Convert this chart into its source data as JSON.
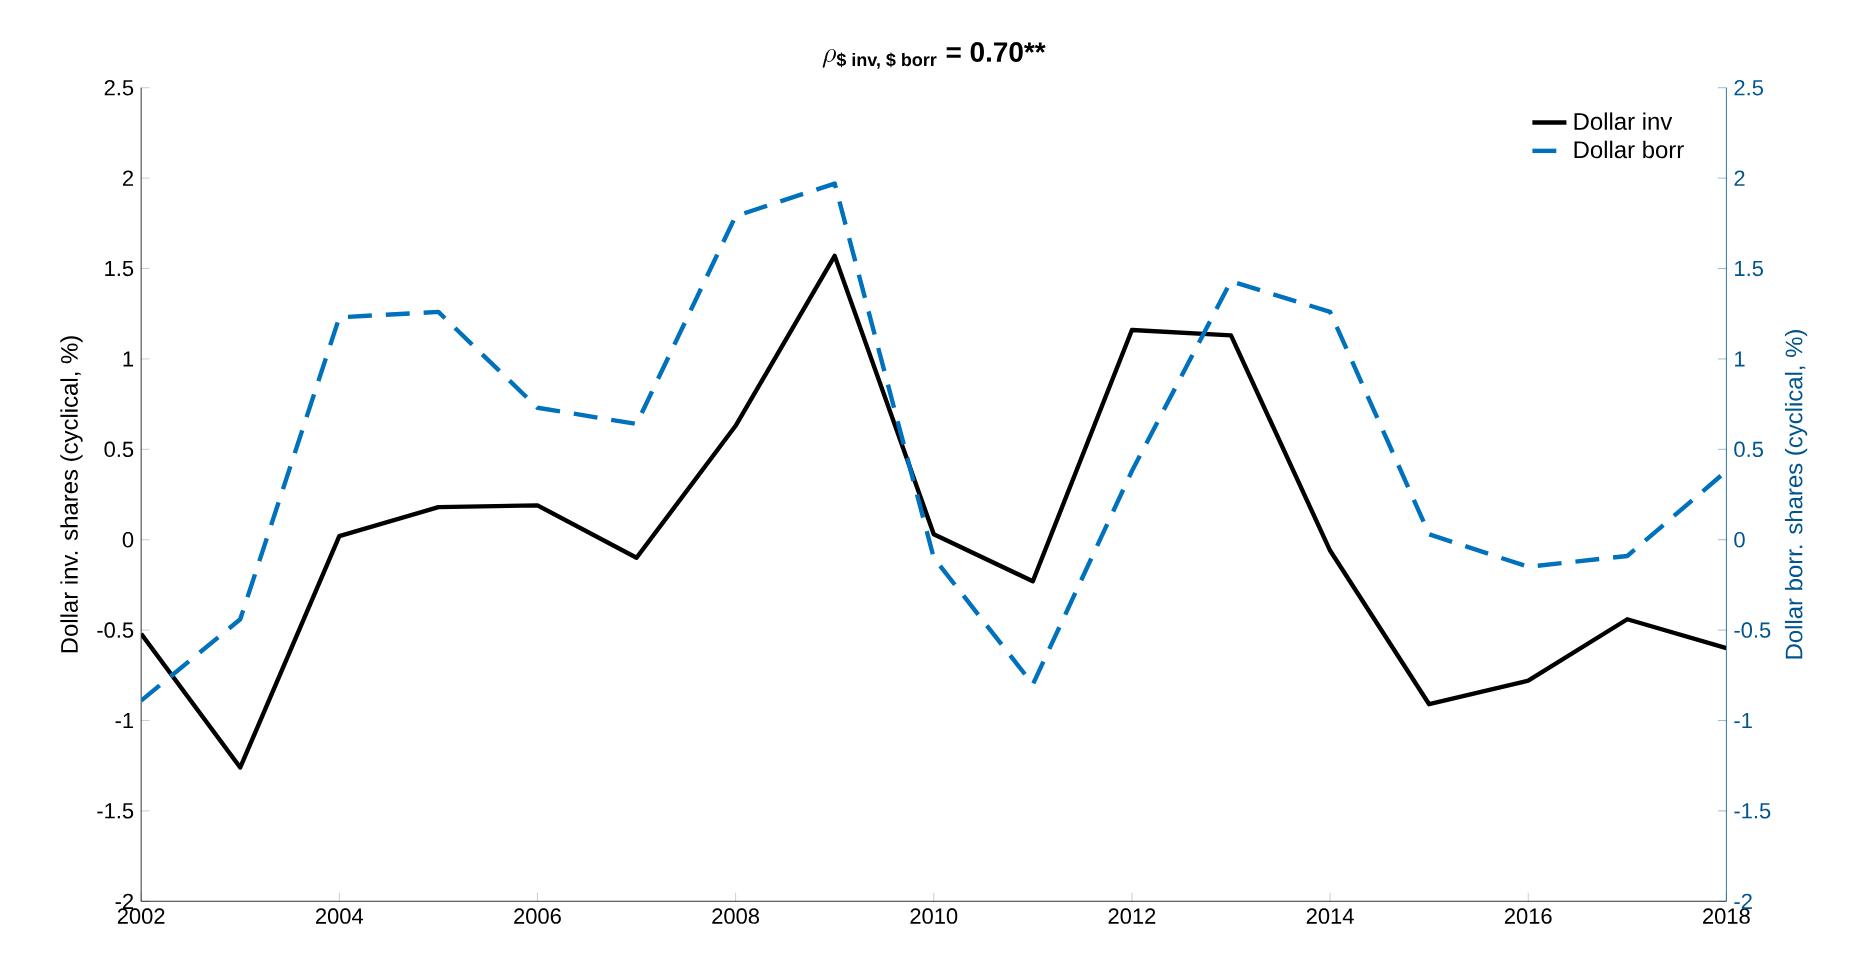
{
  "chart_data": {
    "type": "line",
    "title": "\\rho_{\\mbox{\\bfseries\\small \\$ inv, \\$ borr}}\\ \\mbox{\\bfseries = 0.70**}",
    "ylabel": "Dollar inv. shares (cyclical, %)",
    "y2label": "Dollar borr. shares (cyclical, %)",
    "x": [
      2002,
      2003,
      2004,
      2005,
      2006,
      2007,
      2008,
      2009,
      2010,
      2011,
      2012,
      2013,
      2014,
      2015,
      2016,
      2017,
      2018
    ],
    "series": [
      {
        "name": "Dollar inv",
        "color": "#000000",
        "line_style": "solid",
        "values": [
          -0.52,
          -1.26,
          0.02,
          0.18,
          0.19,
          -0.1,
          0.63,
          1.57,
          0.03,
          -0.23,
          1.16,
          1.13,
          -0.06,
          -0.91,
          -0.78,
          -0.44,
          -0.6
        ]
      },
      {
        "name": "Dollar borr",
        "color": "#0072bd",
        "line_style": "dashed",
        "axis": "y2",
        "values": [
          -0.89,
          -0.44,
          1.23,
          1.26,
          0.73,
          0.64,
          1.79,
          1.97,
          -0.1,
          -0.8,
          0.38,
          1.43,
          1.26,
          0.03,
          -0.15,
          -0.09,
          0.38
        ]
      }
    ],
    "xlim": [
      2002,
      2018
    ],
    "xticks": [
      2002,
      2004,
      2006,
      2008,
      2010,
      2012,
      2014,
      2016,
      2018
    ],
    "ylim": [
      -2,
      2.5
    ],
    "yticks": [
      -2,
      -1.5,
      -1,
      -0.5,
      0,
      0.5,
      1,
      1.5,
      2,
      2.5
    ],
    "y2lim": [
      -2,
      2.5
    ],
    "y2ticks": [
      -2,
      -1.5,
      -1,
      -0.5,
      0,
      0.5,
      1,
      1.5,
      2,
      2.5
    ],
    "legend": "top right"
  }
}
